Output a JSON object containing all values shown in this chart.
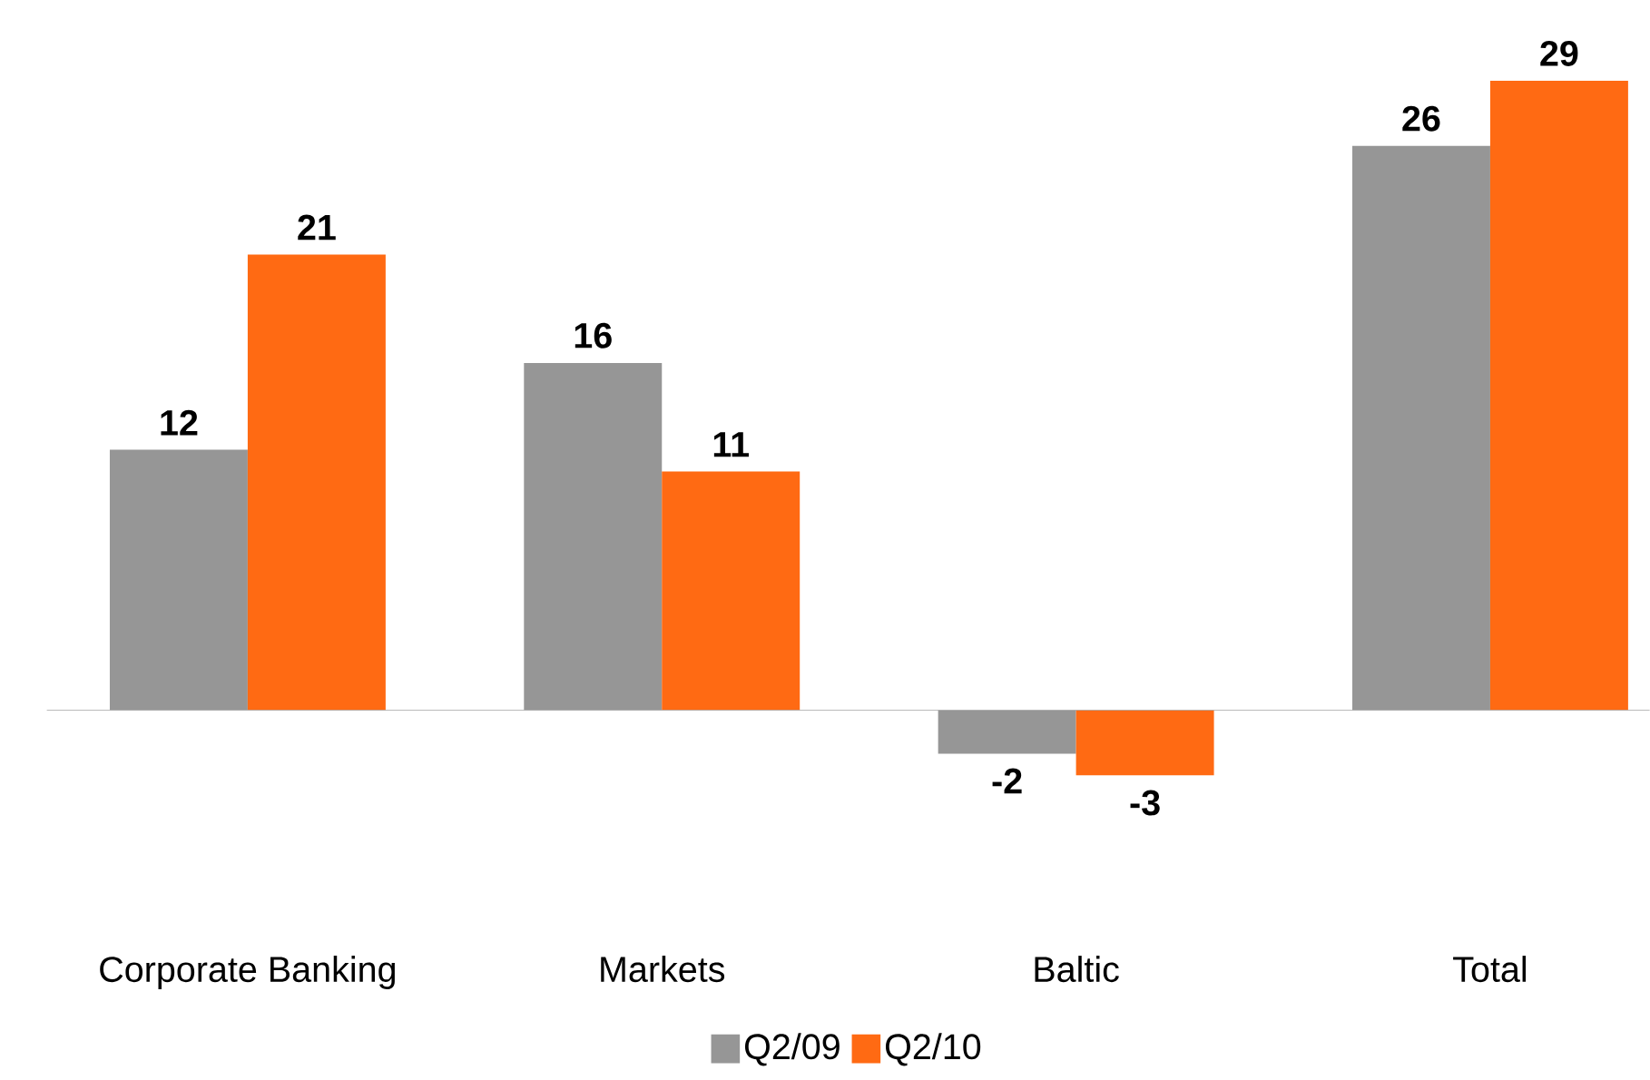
{
  "chart_data": {
    "type": "bar",
    "categories": [
      "Corporate Banking",
      "Markets",
      "Baltic",
      "Total"
    ],
    "series": [
      {
        "name": "Q2/09",
        "color": "#969696",
        "values": [
          12,
          16,
          -2,
          26
        ]
      },
      {
        "name": "Q2/10",
        "color": "#ff6a13",
        "values": [
          21,
          11,
          -3,
          29
        ]
      }
    ],
    "data_labels": true,
    "legend": "bottom"
  }
}
